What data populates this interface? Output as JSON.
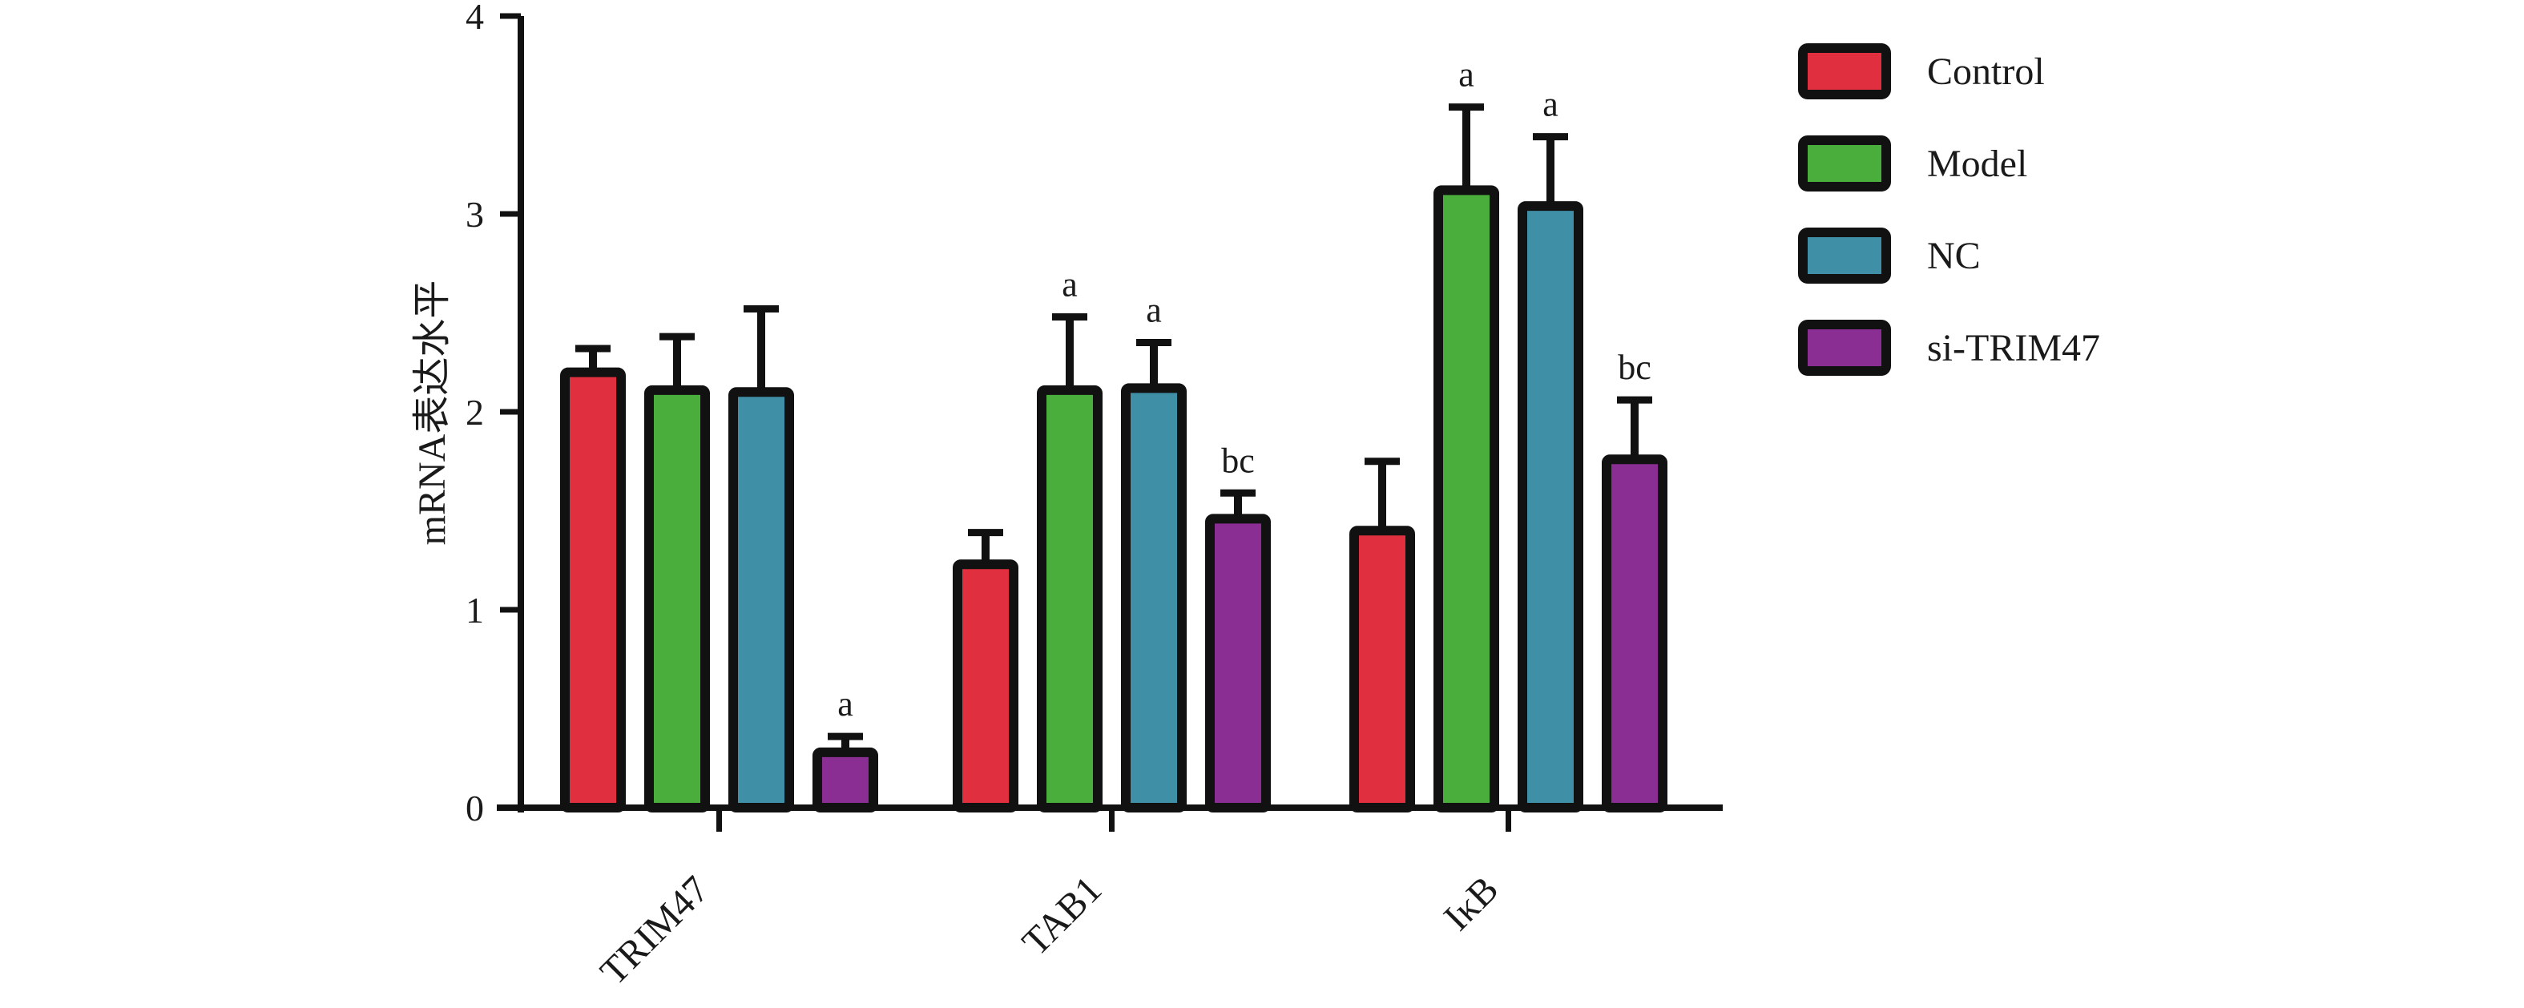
{
  "chart_data": {
    "type": "bar",
    "title": "",
    "xlabel": "",
    "ylabel": "mRNA表达水平",
    "ylim": [
      0,
      4
    ],
    "yticks": [
      0,
      1,
      2,
      3,
      4
    ],
    "categories": [
      "TRIM47",
      "TAB1",
      "IκB"
    ],
    "grid": false,
    "legend_position": "right",
    "series": [
      {
        "name": "Control",
        "color": "#e0303f",
        "values": [
          2.2,
          1.23,
          1.4
        ],
        "errors": [
          0.12,
          0.16,
          0.35
        ],
        "annotations": [
          "",
          "",
          ""
        ]
      },
      {
        "name": "Model",
        "color": "#4aae3c",
        "values": [
          2.11,
          2.11,
          3.12
        ],
        "errors": [
          0.27,
          0.37,
          0.42
        ],
        "annotations": [
          "",
          "a",
          "a"
        ]
      },
      {
        "name": "NC",
        "color": "#3f8fa7",
        "values": [
          2.1,
          2.12,
          3.04
        ],
        "errors": [
          0.42,
          0.23,
          0.35
        ],
        "annotations": [
          "",
          "a",
          "a"
        ]
      },
      {
        "name": "si-TRIM47",
        "color": "#8a2e93",
        "values": [
          0.28,
          1.46,
          1.76
        ],
        "errors": [
          0.08,
          0.13,
          0.3
        ],
        "annotations": [
          "a",
          "bc",
          "bc"
        ]
      }
    ]
  }
}
